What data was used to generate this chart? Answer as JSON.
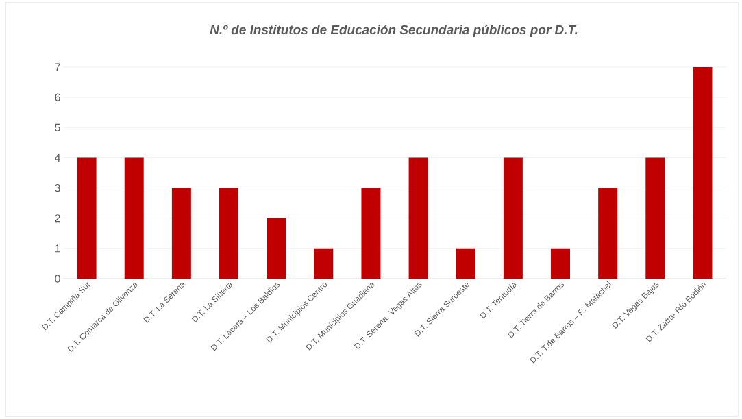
{
  "chart_data": {
    "type": "bar",
    "title": "N.º de Institutos de Educación Secundaria públicos por D.T.",
    "categories": [
      "D.T. Campiña Sur",
      "D.T. Comarca de Olivenza",
      "D.T. La Serena",
      "D.T. La Siberia",
      "D.T. Lácara – Los Baldíos",
      "D.T. Municipios Centro",
      "D.T. Municipios Guadiana",
      "D.T. Serena. Vegas Altas",
      "D.T. Sierra Suroeste",
      "D.T. Tentudía",
      "D.T. Tierra de Barros",
      "D.T. T.de Barros – R. Matachel",
      "D.T. Vegas Bajas",
      "D.T. Zafra- Río Bodión"
    ],
    "values": [
      4,
      4,
      3,
      3,
      2,
      1,
      3,
      4,
      1,
      4,
      1,
      3,
      4,
      7
    ],
    "color": "#c00000",
    "ylim": [
      0,
      7
    ],
    "yticks": [
      0,
      1,
      2,
      3,
      4,
      5,
      6,
      7
    ],
    "grid": "y"
  }
}
